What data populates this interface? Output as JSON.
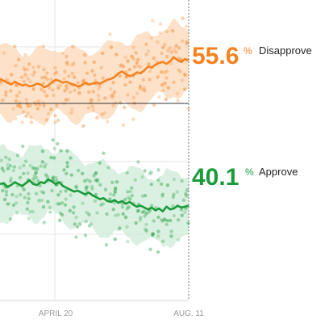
{
  "chart_data": {
    "type": "line",
    "title": "",
    "xlabel": "",
    "ylabel": "",
    "x_ticks": [
      "APRIL 20",
      "AUG. 11"
    ],
    "ylim": [
      30,
      62
    ],
    "grid": true,
    "reference_line": 50,
    "legend": "inline-right",
    "series": [
      {
        "name": "Disapprove",
        "color": "#f58220",
        "band_color": "#fcd7b6",
        "latest_value": "55.6",
        "latest_suffix": "%",
        "values": [
          53.6,
          53.4,
          53.2,
          53.0,
          53.3,
          53.1,
          52.9,
          53.0,
          52.8,
          52.9,
          53.1,
          53.0,
          52.7,
          52.9,
          53.2,
          53.5,
          53.4,
          53.2,
          53.3,
          53.1,
          53.0,
          52.8,
          52.9,
          53.2,
          53.0,
          53.1,
          53.2,
          53.1,
          53.3,
          53.5,
          53.6,
          53.8,
          54.2,
          54.4,
          54.1,
          53.9,
          54.0,
          54.3,
          54.2,
          54.5,
          54.9,
          54.8,
          55.1,
          55.3,
          55.4,
          55.2,
          55.5,
          55.9,
          55.6,
          55.4,
          55.7,
          55.6
        ]
      },
      {
        "name": "Approve",
        "color": "#1a9b3a",
        "band_color": "#cdebd5",
        "latest_value": "40.1",
        "latest_suffix": "%",
        "values": [
          42.4,
          42.5,
          42.1,
          42.3,
          42.6,
          42.4,
          42.2,
          42.5,
          42.8,
          42.4,
          42.3,
          42.6,
          42.5,
          42.9,
          42.7,
          42.4,
          42.6,
          42.2,
          42.0,
          41.8,
          41.6,
          41.7,
          41.5,
          41.3,
          41.5,
          41.2,
          41.0,
          40.8,
          40.9,
          40.6,
          40.5,
          40.7,
          40.4,
          40.6,
          40.3,
          40.5,
          40.2,
          40.0,
          40.1,
          39.9,
          39.7,
          39.9,
          39.6,
          39.8,
          39.5,
          40.0,
          39.7,
          39.8,
          40.1,
          39.9,
          40.0,
          40.1
        ]
      }
    ]
  }
}
